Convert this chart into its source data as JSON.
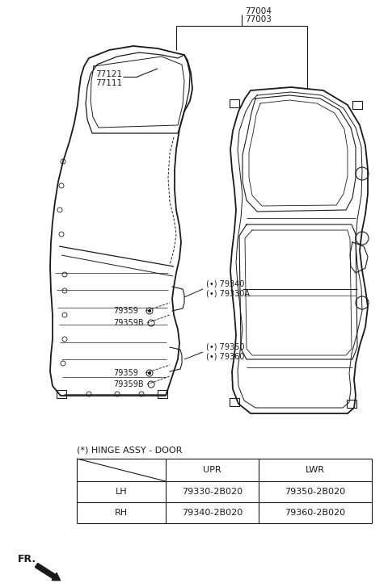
{
  "bg_color": "#ffffff",
  "line_color": "#1a1a1a",
  "text_color": "#1a1a1a",
  "figsize": [
    4.8,
    7.22
  ],
  "dpi": 100,
  "title_label": "(*) HINGE ASSY - DOOR",
  "table_col_headers": [
    "UPR",
    "LWR"
  ],
  "table_row_headers": [
    "LH",
    "RH"
  ],
  "table_data": [
    [
      "79330-2B020",
      "79350-2B020"
    ],
    [
      "79340-2B020",
      "79360-2B020"
    ]
  ],
  "fr_label": "FR.",
  "label_77004": "77004",
  "label_77003": "77003",
  "label_77121": "77121",
  "label_77111": "77111",
  "label_79340": "(-•) 79340",
  "label_79330A": "(-•) 79330A",
  "label_79350": "(-•) 79350",
  "label_79360": "(-•) 79360",
  "label_79359": "79359",
  "label_79359B": "79359B"
}
